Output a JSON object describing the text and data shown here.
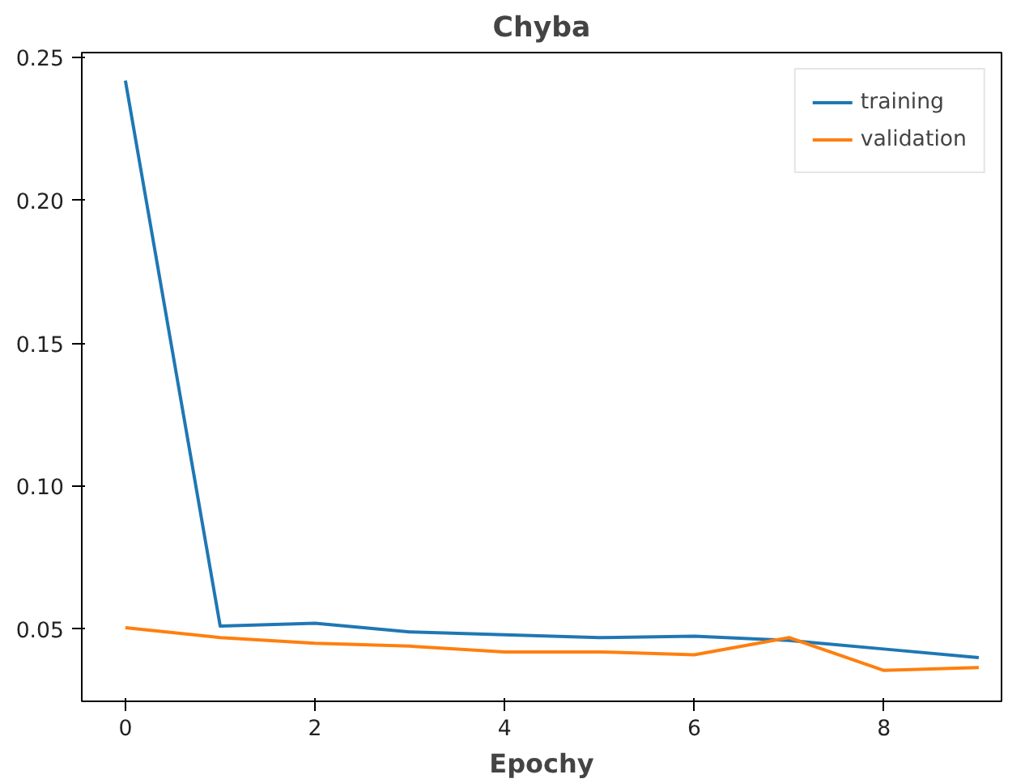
{
  "chart_data": {
    "type": "line",
    "title": "Chyba",
    "xlabel": "Epochy",
    "x": [
      0,
      1,
      2,
      3,
      4,
      5,
      6,
      7,
      8,
      9
    ],
    "series": [
      {
        "name": "training",
        "color": "#1f77b4",
        "values": [
          0.242,
          0.051,
          0.052,
          0.049,
          0.048,
          0.047,
          0.0475,
          0.046,
          0.043,
          0.04
        ]
      },
      {
        "name": "validation",
        "color": "#ff7f0e",
        "values": [
          0.0505,
          0.047,
          0.045,
          0.044,
          0.042,
          0.042,
          0.041,
          0.047,
          0.0355,
          0.0365
        ]
      }
    ],
    "xlim": [
      -0.46,
      9.24
    ],
    "ylim": [
      0.0247,
      0.2518
    ],
    "xticks": [
      0,
      2,
      4,
      6,
      8
    ],
    "yticks": [
      {
        "value": 0.05,
        "label": "0.05"
      },
      {
        "value": 0.1,
        "label": "0.10"
      },
      {
        "value": 0.15,
        "label": "0.15"
      },
      {
        "value": 0.2,
        "label": "0.20"
      },
      {
        "value": 0.25,
        "label": "0.25"
      }
    ],
    "legend": "top right",
    "grid": false,
    "marker": "none",
    "line_style": "solid"
  }
}
